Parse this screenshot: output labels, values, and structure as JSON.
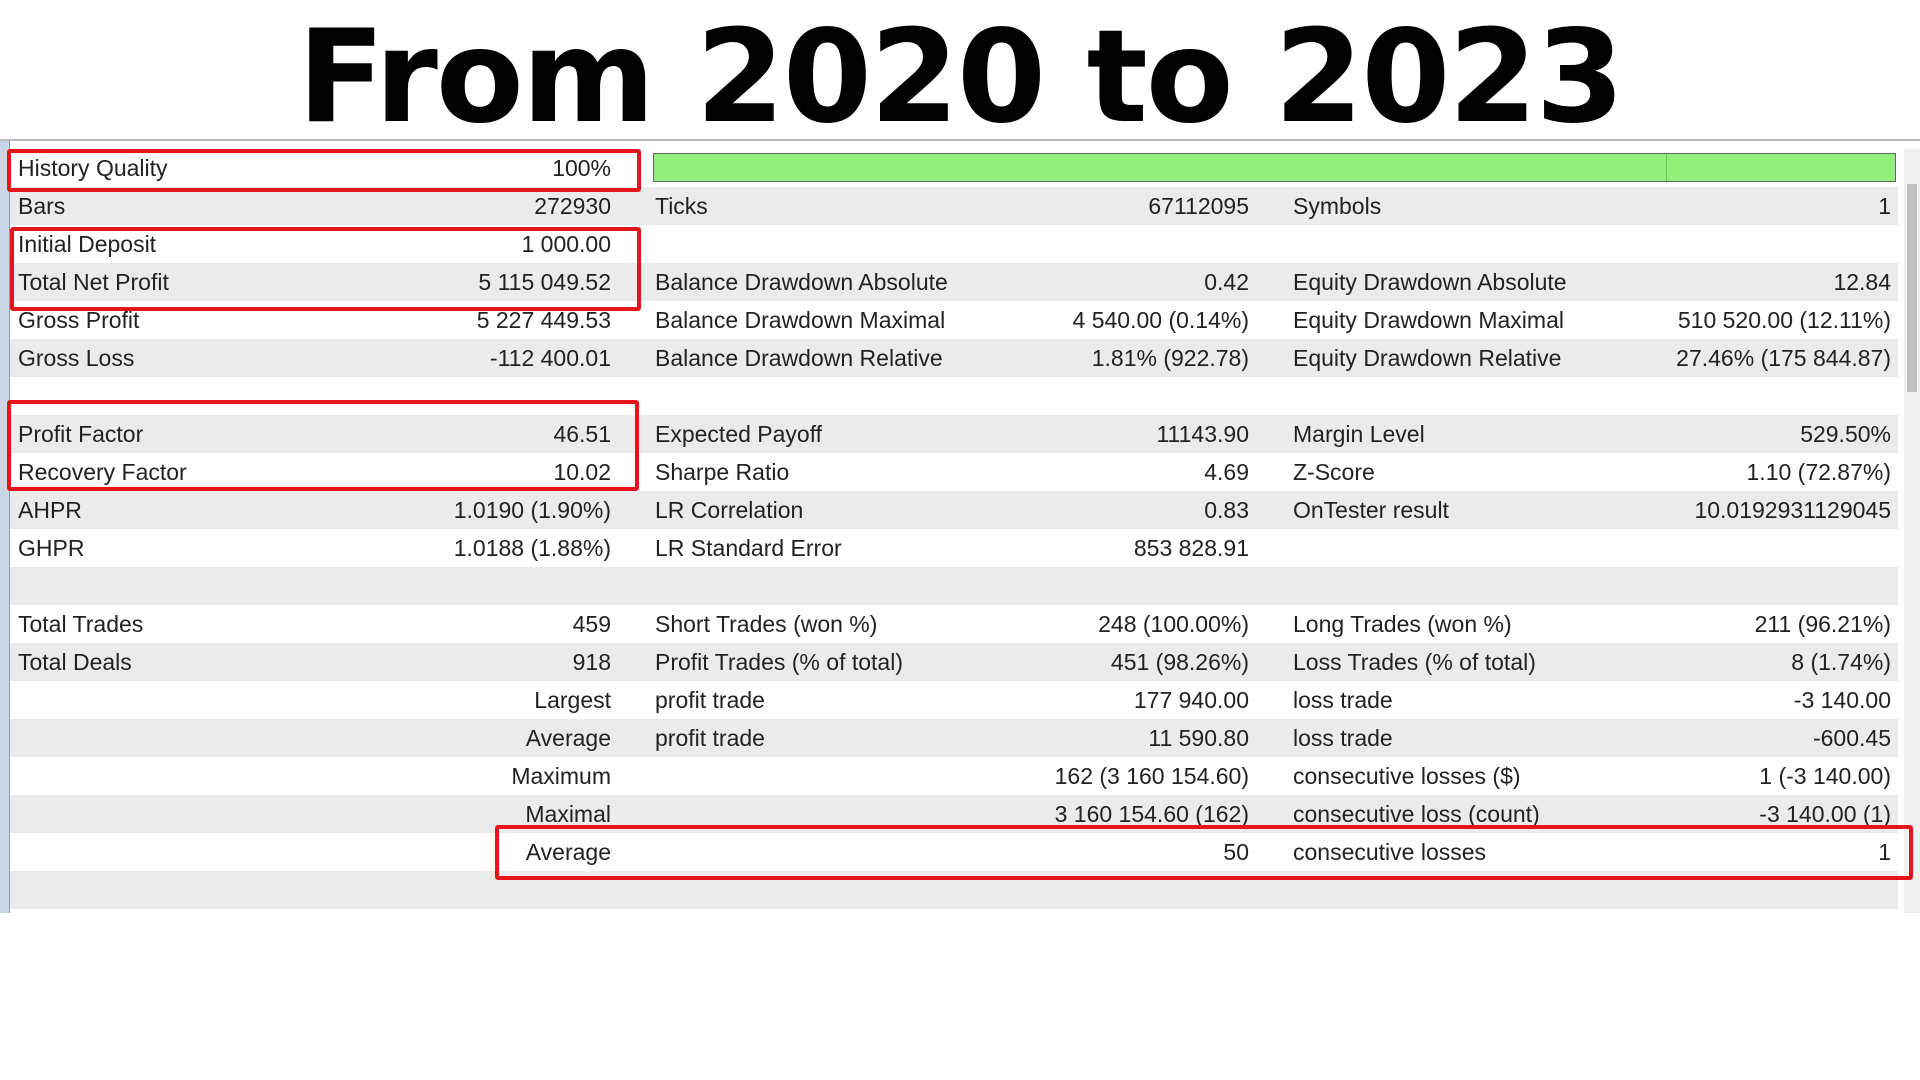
{
  "header": {
    "title": "From 2020 to 2023"
  },
  "table": {
    "rows": [
      [
        "History Quality",
        "100%",
        null,
        null,
        null,
        null
      ],
      [
        "Bars",
        "272930",
        "Ticks",
        "67112095",
        "Symbols",
        "1"
      ],
      [
        "Initial Deposit",
        "1 000.00",
        null,
        null,
        null,
        null
      ],
      [
        "Total Net Profit",
        "5 115 049.52",
        "Balance Drawdown Absolute",
        "0.42",
        "Equity Drawdown Absolute",
        "12.84"
      ],
      [
        "Gross Profit",
        "5 227 449.53",
        "Balance Drawdown Maximal",
        "4 540.00 (0.14%)",
        "Equity Drawdown Maximal",
        "510 520.00 (12.11%)"
      ],
      [
        "Gross Loss",
        "-112 400.01",
        "Balance Drawdown Relative",
        "1.81% (922.78)",
        "Equity Drawdown Relative",
        "27.46% (175 844.87)"
      ],
      [
        null,
        null,
        null,
        null,
        null,
        null
      ],
      [
        "Profit Factor",
        "46.51",
        "Expected Payoff",
        "11143.90",
        "Margin Level",
        "529.50%"
      ],
      [
        "Recovery Factor",
        "10.02",
        "Sharpe Ratio",
        "4.69",
        "Z-Score",
        "1.10 (72.87%)"
      ],
      [
        "AHPR",
        "1.0190 (1.90%)",
        "LR Correlation",
        "0.83",
        "OnTester result",
        "10.0192931129045"
      ],
      [
        "GHPR",
        "1.0188 (1.88%)",
        "LR Standard Error",
        "853 828.91",
        null,
        null
      ],
      [
        null,
        null,
        null,
        null,
        null,
        null
      ],
      [
        "Total Trades",
        "459",
        "Short Trades (won %)",
        "248 (100.00%)",
        "Long Trades (won %)",
        "211 (96.21%)"
      ],
      [
        "Total Deals",
        "918",
        "Profit Trades (% of total)",
        "451 (98.26%)",
        "Loss Trades (% of total)",
        "8 (1.74%)"
      ],
      [
        null,
        "Largest",
        "profit trade",
        "177 940.00",
        "loss trade",
        "-3 140.00"
      ],
      [
        null,
        "Average",
        "profit trade",
        "11 590.80",
        "loss trade",
        "-600.45"
      ],
      [
        null,
        "Maximum",
        null,
        "162 (3 160 154.60)",
        "consecutive losses ($)",
        "1 (-3 140.00)"
      ],
      [
        null,
        "Maximal",
        null,
        "3 160 154.60 (162)",
        "consecutive loss (count)",
        "-3 140.00 (1)"
      ],
      [
        null,
        "Average",
        null,
        "50",
        "consecutive losses",
        "1"
      ],
      [
        null,
        null,
        null,
        null,
        null,
        null
      ]
    ]
  }
}
